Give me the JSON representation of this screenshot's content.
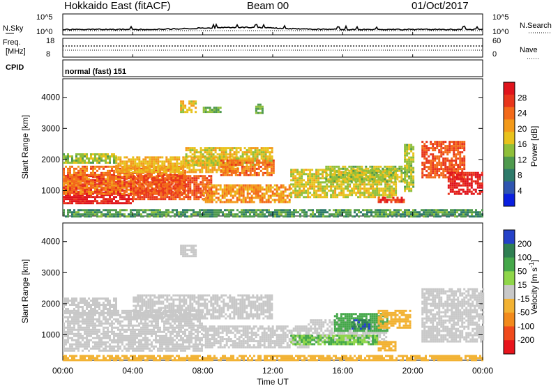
{
  "header": {
    "station": "Hokkaido East (fitACF)",
    "beam": "Beam 00",
    "date": "01/Oct/2017"
  },
  "panels": {
    "nsky": {
      "label": "N.Sky",
      "right_label": "N.Search",
      "left_ticks": [
        "10^5",
        "10^0"
      ],
      "right_ticks": [
        "10^5",
        "10^0"
      ]
    },
    "freq": {
      "label_line1": "Freq.",
      "label_line2": "[MHz]",
      "left_ticks": [
        "18",
        "8"
      ],
      "right_ticks": [
        "60",
        "0"
      ],
      "right_label": "Nave"
    },
    "cpid": {
      "label": "CPID",
      "value": "normal (fast) 151"
    }
  },
  "chart_data": [
    {
      "type": "heatmap",
      "title": "",
      "xlabel": "",
      "ylabel": "Slant Range [km]",
      "x_ticks": [
        "00:00",
        "04:00",
        "08:00",
        "12:00",
        "16:00",
        "20:00",
        "00:00"
      ],
      "xlim_hours": [
        0,
        24
      ],
      "y_ticks": [
        1000,
        2000,
        3000,
        4000
      ],
      "ylim_km": [
        180,
        4600
      ],
      "colorbar": {
        "label": "Power [dB]",
        "ticks": [
          "4",
          "8",
          "12",
          "16",
          "20",
          "24",
          "28"
        ],
        "range": [
          0,
          30
        ],
        "colors": [
          "#0a1fe0",
          "#2f55b0",
          "#2e7a6a",
          "#4f9a4e",
          "#8fbf3a",
          "#e8c21c",
          "#f39a1a",
          "#f36a1a",
          "#e8361c",
          "#e0141c"
        ]
      },
      "regions": [
        {
          "t": [
            0.0,
            4.0
          ],
          "r": [
            600,
            1500
          ],
          "level": 28
        },
        {
          "t": [
            0.0,
            7.0
          ],
          "r": [
            900,
            1800
          ],
          "level": 22
        },
        {
          "t": [
            4.0,
            8.5
          ],
          "r": [
            700,
            1500
          ],
          "level": 24
        },
        {
          "t": [
            0.0,
            3.0
          ],
          "r": [
            1900,
            2200
          ],
          "level": 14
        },
        {
          "t": [
            3.0,
            10.0
          ],
          "r": [
            1600,
            2100
          ],
          "level": 18
        },
        {
          "t": [
            7.0,
            12.0
          ],
          "r": [
            1800,
            2400
          ],
          "level": 16
        },
        {
          "t": [
            9.0,
            12.0
          ],
          "r": [
            1500,
            2000
          ],
          "level": 22
        },
        {
          "t": [
            6.7,
            7.6
          ],
          "r": [
            3500,
            3900
          ],
          "level": 17
        },
        {
          "t": [
            8.0,
            9.0
          ],
          "r": [
            3500,
            3700
          ],
          "level": 12
        },
        {
          "t": [
            11.0,
            11.4
          ],
          "r": [
            3500,
            3800
          ],
          "level": 12
        },
        {
          "t": [
            8.0,
            13.0
          ],
          "r": [
            600,
            1200
          ],
          "level": 20
        },
        {
          "t": [
            13.0,
            19.0
          ],
          "r": [
            800,
            1700
          ],
          "level": 16
        },
        {
          "t": [
            15.0,
            19.5
          ],
          "r": [
            1300,
            1800
          ],
          "level": 14
        },
        {
          "t": [
            18.0,
            19.5
          ],
          "r": [
            600,
            800
          ],
          "level": 26
        },
        {
          "t": [
            19.5,
            20.0
          ],
          "r": [
            1000,
            2500
          ],
          "level": 14
        },
        {
          "t": [
            20.5,
            23.0
          ],
          "r": [
            1400,
            2600
          ],
          "level": 24
        },
        {
          "t": [
            22.0,
            24.0
          ],
          "r": [
            900,
            1600
          ],
          "level": 28
        },
        {
          "t": [
            0.0,
            24.0
          ],
          "r": [
            180,
            400
          ],
          "level": 10
        }
      ]
    },
    {
      "type": "heatmap",
      "title": "",
      "xlabel": "Time UT",
      "ylabel": "Slant Range [km]",
      "x_ticks": [
        "00:00",
        "04:00",
        "08:00",
        "12:00",
        "16:00",
        "20:00",
        "00:00"
      ],
      "xlim_hours": [
        0,
        24
      ],
      "y_ticks": [
        1000,
        2000,
        3000,
        4000
      ],
      "ylim_km": [
        180,
        4600
      ],
      "colorbar": {
        "label": "Velocity [m s^-1]",
        "ticks": [
          "200",
          "100",
          "50",
          "15",
          "-15",
          "-50",
          "-100",
          "-200"
        ],
        "colors": [
          "#2541c8",
          "#2f7f52",
          "#45a84a",
          "#8fd64a",
          "#c8c8c8",
          "#f2b233",
          "#f28a1c",
          "#f04a1c",
          "#e8141c"
        ]
      },
      "regions": [
        {
          "t": [
            0.0,
            8.0
          ],
          "r": [
            500,
            1800
          ],
          "velocity": 0
        },
        {
          "t": [
            0.0,
            3.0
          ],
          "r": [
            1700,
            2200
          ],
          "velocity": 0
        },
        {
          "t": [
            4.0,
            12.0
          ],
          "r": [
            1500,
            2300
          ],
          "velocity": 0
        },
        {
          "t": [
            6.7,
            7.6
          ],
          "r": [
            3500,
            3900
          ],
          "velocity": 0
        },
        {
          "t": [
            8.0,
            14.0
          ],
          "r": [
            600,
            1300
          ],
          "velocity": 0
        },
        {
          "t": [
            14.0,
            18.5
          ],
          "r": [
            800,
            1500
          ],
          "velocity": 0
        },
        {
          "t": [
            15.5,
            18.5
          ],
          "r": [
            1100,
            1700
          ],
          "velocity": 70
        },
        {
          "t": [
            16.5,
            17.5
          ],
          "r": [
            1200,
            1500
          ],
          "velocity": 150
        },
        {
          "t": [
            18.0,
            19.8
          ],
          "r": [
            1200,
            1800
          ],
          "velocity": -40
        },
        {
          "t": [
            13.0,
            18.0
          ],
          "r": [
            700,
            1000
          ],
          "velocity": 30
        },
        {
          "t": [
            18.0,
            19.0
          ],
          "r": [
            500,
            800
          ],
          "velocity": -40
        },
        {
          "t": [
            20.5,
            24.0
          ],
          "r": [
            800,
            2500
          ],
          "velocity": 0
        },
        {
          "t": [
            0.0,
            24.0
          ],
          "r": [
            180,
            350
          ],
          "velocity": -30
        }
      ]
    }
  ]
}
